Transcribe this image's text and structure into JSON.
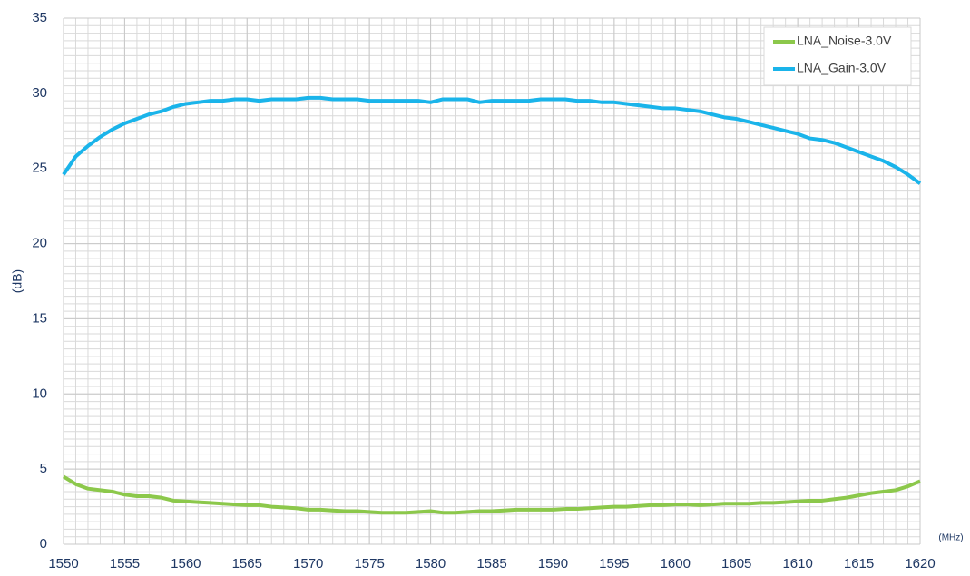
{
  "chart_data": {
    "type": "line",
    "y_label": "(dB)",
    "x_label": "(MHz)",
    "x": [
      1550,
      1551,
      1552,
      1553,
      1554,
      1555,
      1556,
      1557,
      1558,
      1559,
      1560,
      1561,
      1562,
      1563,
      1564,
      1565,
      1566,
      1567,
      1568,
      1569,
      1570,
      1571,
      1572,
      1573,
      1574,
      1575,
      1576,
      1577,
      1578,
      1579,
      1580,
      1581,
      1582,
      1583,
      1584,
      1585,
      1586,
      1587,
      1588,
      1589,
      1590,
      1591,
      1592,
      1593,
      1594,
      1595,
      1596,
      1597,
      1598,
      1599,
      1600,
      1601,
      1602,
      1603,
      1604,
      1605,
      1606,
      1607,
      1608,
      1609,
      1610,
      1611,
      1612,
      1613,
      1614,
      1615,
      1616,
      1617,
      1618,
      1619,
      1620
    ],
    "series": [
      {
        "name": "LNA_Noise-3.0V",
        "color": "#8cc84b",
        "values": [
          4.5,
          4.0,
          3.7,
          3.6,
          3.5,
          3.3,
          3.2,
          3.2,
          3.1,
          2.9,
          2.85,
          2.8,
          2.75,
          2.7,
          2.65,
          2.6,
          2.6,
          2.5,
          2.45,
          2.4,
          2.3,
          2.3,
          2.25,
          2.2,
          2.2,
          2.15,
          2.1,
          2.1,
          2.1,
          2.15,
          2.2,
          2.1,
          2.1,
          2.15,
          2.2,
          2.2,
          2.25,
          2.3,
          2.3,
          2.3,
          2.3,
          2.35,
          2.35,
          2.4,
          2.45,
          2.5,
          2.5,
          2.55,
          2.6,
          2.6,
          2.65,
          2.65,
          2.6,
          2.65,
          2.7,
          2.7,
          2.7,
          2.75,
          2.75,
          2.8,
          2.85,
          2.9,
          2.9,
          3.0,
          3.1,
          3.25,
          3.4,
          3.5,
          3.6,
          3.85,
          4.2
        ]
      },
      {
        "name": "LNA_Gain-3.0V",
        "color": "#1ab4ea",
        "values": [
          24.6,
          25.8,
          26.5,
          27.1,
          27.6,
          28.0,
          28.3,
          28.6,
          28.8,
          29.1,
          29.3,
          29.4,
          29.5,
          29.5,
          29.6,
          29.6,
          29.5,
          29.6,
          29.6,
          29.6,
          29.7,
          29.7,
          29.6,
          29.6,
          29.6,
          29.5,
          29.5,
          29.5,
          29.5,
          29.5,
          29.4,
          29.6,
          29.6,
          29.6,
          29.4,
          29.5,
          29.5,
          29.5,
          29.5,
          29.6,
          29.6,
          29.6,
          29.5,
          29.5,
          29.4,
          29.4,
          29.3,
          29.2,
          29.1,
          29.0,
          29.0,
          28.9,
          28.8,
          28.6,
          28.4,
          28.3,
          28.1,
          27.9,
          27.7,
          27.5,
          27.3,
          27.0,
          26.9,
          26.7,
          26.4,
          26.1,
          25.8,
          25.5,
          25.1,
          24.6,
          24.0
        ]
      }
    ],
    "xlim": [
      1550,
      1620
    ],
    "xticks": [
      1550,
      1555,
      1560,
      1565,
      1570,
      1575,
      1580,
      1585,
      1590,
      1595,
      1600,
      1605,
      1610,
      1615,
      1620
    ],
    "ylim": [
      0,
      35
    ],
    "yticks": [
      0,
      5,
      10,
      15,
      20,
      25,
      30,
      35
    ],
    "grid": true,
    "minor_grid_step": {
      "x": 1,
      "y": 0.5
    },
    "legend": "upper right"
  }
}
